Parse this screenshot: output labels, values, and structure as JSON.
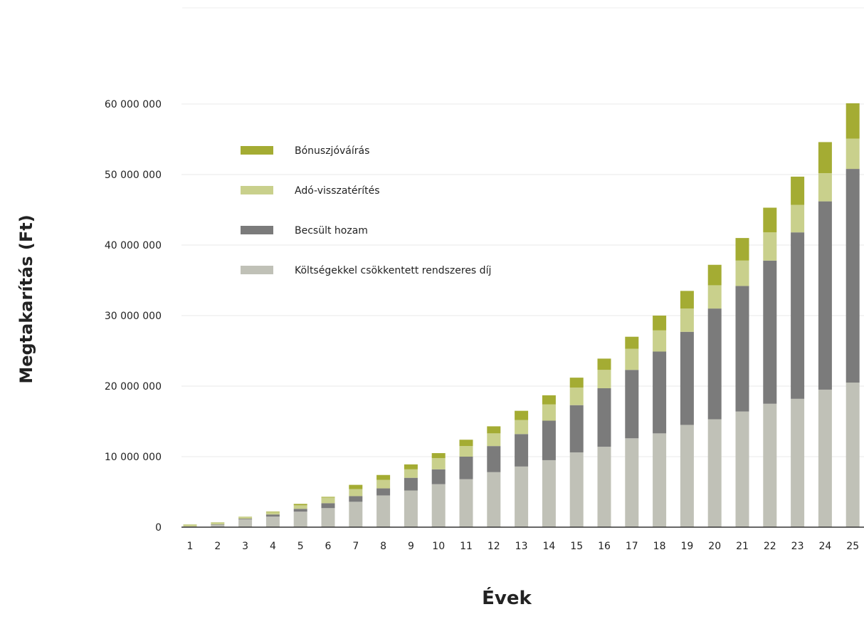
{
  "chart_data": {
    "type": "bar",
    "stacked": true,
    "categories": [
      "1",
      "2",
      "3",
      "4",
      "5",
      "6",
      "7",
      "8",
      "9",
      "10",
      "11",
      "12",
      "13",
      "14",
      "15",
      "16",
      "17",
      "18",
      "19",
      "20",
      "21",
      "22",
      "23",
      "24",
      "25"
    ],
    "series": [
      {
        "name": "Költségekkel csökkentett rendszeres díj",
        "color": "#c0c1b7",
        "values": [
          100000,
          350000,
          1100000,
          1500000,
          2200000,
          2700000,
          3600000,
          4500000,
          5200000,
          6100000,
          6800000,
          7800000,
          8600000,
          9500000,
          10600000,
          11400000,
          12600000,
          13300000,
          14500000,
          15300000,
          16400000,
          17500000,
          18200000,
          19500000,
          20500000
        ]
      },
      {
        "name": "Becsült hozam",
        "color": "#7b7b7b",
        "values": [
          0,
          50000,
          100000,
          300000,
          400000,
          700000,
          800000,
          1000000,
          1800000,
          2100000,
          3200000,
          3700000,
          4600000,
          5600000,
          6700000,
          8300000,
          9700000,
          11600000,
          13200000,
          15700000,
          17800000,
          20300000,
          23600000,
          26700000,
          30300000
        ]
      },
      {
        "name": "Adó-visszatérítés",
        "color": "#c9d08c",
        "values": [
          300000,
          300000,
          300000,
          300000,
          500000,
          800000,
          1000000,
          1200000,
          1200000,
          1600000,
          1500000,
          1800000,
          2000000,
          2300000,
          2500000,
          2600000,
          3000000,
          3000000,
          3300000,
          3300000,
          3600000,
          4000000,
          3900000,
          4000000,
          4300000
        ]
      },
      {
        "name": "Bónuszjóváírás",
        "color": "#a4ac33",
        "values": [
          0,
          0,
          0,
          100000,
          200000,
          100000,
          600000,
          700000,
          700000,
          700000,
          900000,
          1000000,
          1300000,
          1300000,
          1400000,
          1600000,
          1700000,
          2100000,
          2500000,
          2900000,
          3200000,
          3500000,
          4000000,
          4400000,
          5000000
        ]
      }
    ],
    "ylim": [
      0,
      60000000
    ],
    "yticks": [
      0,
      10000000,
      20000000,
      30000000,
      40000000,
      50000000,
      60000000
    ],
    "ytick_labels": [
      "0",
      "10 000 000",
      "20 000 000",
      "30 000 000",
      "40 000 000",
      "50 000 000",
      "60 000 000"
    ],
    "xlabel": "Évek",
    "ylabel": "Megtakarítás (Ft)",
    "grid": true,
    "legend_position": "top-left"
  }
}
